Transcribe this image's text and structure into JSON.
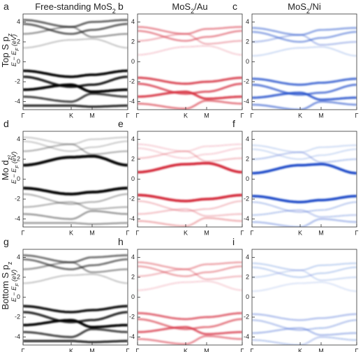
{
  "panel_letters": [
    "a",
    "b",
    "c",
    "d",
    "e",
    "f",
    "g",
    "h",
    "i"
  ],
  "column_titles": [
    {
      "main": "Free-standing MoS",
      "sub": "2"
    },
    {
      "main": "MoS",
      "sub": "2",
      "tail": "/Au"
    },
    {
      "main": "MoS",
      "sub": "2",
      "tail": "/Ni"
    }
  ],
  "row_labels": [
    {
      "main": "Top S p",
      "sub": "z"
    },
    {
      "main": "Mo d",
      "sub": "z²"
    },
    {
      "main": "Bottom S p",
      "sub": "z"
    }
  ],
  "energy_axis_label": {
    "main": "E − E",
    "sub": "F",
    "tail": " (eV)"
  },
  "ylim": [
    -4.8,
    4.8
  ],
  "yticks": [
    -4,
    -2,
    0,
    2,
    4
  ],
  "xticks": [
    "Γ",
    "K",
    "M",
    "Γ"
  ],
  "colors": [
    "#000000",
    "#d42a3a",
    "#1a48c8"
  ]
}
